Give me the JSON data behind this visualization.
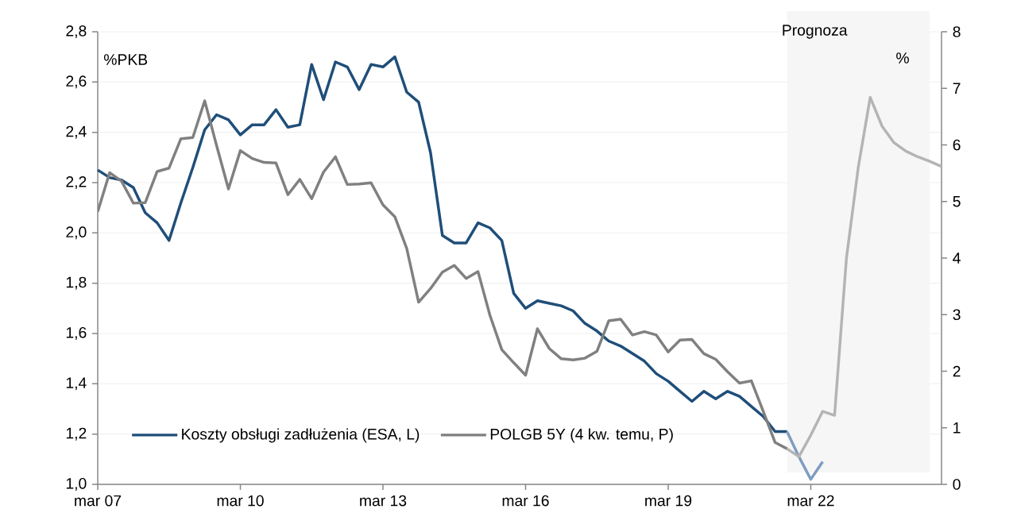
{
  "chart_data": {
    "type": "line",
    "ylabel": "%PKB",
    "y2label": "%",
    "xlim": [
      "2007-03",
      "2024-12"
    ],
    "xticks": [
      {
        "value": "2007-03",
        "label": "mar 07"
      },
      {
        "value": "2010-03",
        "label": "mar 10"
      },
      {
        "value": "2013-03",
        "label": "mar 13"
      },
      {
        "value": "2016-03",
        "label": "mar 16"
      },
      {
        "value": "2019-03",
        "label": "mar 19"
      },
      {
        "value": "2022-03",
        "label": "mar 22"
      }
    ],
    "ylim": [
      1.0,
      2.8
    ],
    "yticks": [
      {
        "value": 1.0,
        "label": "1,0"
      },
      {
        "value": 1.2,
        "label": "1,2"
      },
      {
        "value": 1.4,
        "label": "1,4"
      },
      {
        "value": 1.6,
        "label": "1,6"
      },
      {
        "value": 1.8,
        "label": "1,8"
      },
      {
        "value": 2.0,
        "label": "2,0"
      },
      {
        "value": 2.2,
        "label": "2,2"
      },
      {
        "value": 2.4,
        "label": "2,4"
      },
      {
        "value": 2.6,
        "label": "2,6"
      },
      {
        "value": 2.8,
        "label": "2,8"
      }
    ],
    "y2lim": [
      0,
      8
    ],
    "y2ticks": [
      0,
      1,
      2,
      3,
      4,
      5,
      6,
      7,
      8
    ],
    "grid": "y",
    "legend": "bottom left",
    "bands": [
      {
        "axis": "x",
        "from": "2021-09",
        "to": "2024-09",
        "label": "Prognoza",
        "color": "#f6f6f6"
      }
    ],
    "series": [
      {
        "name": "Koszty obsługi zadłużenia (ESA, L)",
        "color": "#1f4e79",
        "x": [
          "2007-03",
          "2007-06",
          "2007-09",
          "2007-12",
          "2008-03",
          "2008-06",
          "2008-09",
          "2008-12",
          "2009-03",
          "2009-06",
          "2009-09",
          "2009-12",
          "2010-03",
          "2010-06",
          "2010-09",
          "2010-12",
          "2011-03",
          "2011-06",
          "2011-09",
          "2011-12",
          "2012-03",
          "2012-06",
          "2012-09",
          "2012-12",
          "2013-03",
          "2013-06",
          "2013-09",
          "2013-12",
          "2014-03",
          "2014-06",
          "2014-09",
          "2014-12",
          "2015-03",
          "2015-06",
          "2015-09",
          "2015-12",
          "2016-03",
          "2016-06",
          "2016-09",
          "2016-12",
          "2017-03",
          "2017-06",
          "2017-09",
          "2017-12",
          "2018-03",
          "2018-06",
          "2018-09",
          "2018-12",
          "2019-03",
          "2019-06",
          "2019-09",
          "2019-12",
          "2020-03",
          "2020-06",
          "2020-09",
          "2020-12",
          "2021-03",
          "2021-06",
          "2021-09"
        ],
        "values": [
          2.25,
          2.22,
          2.21,
          2.18,
          2.08,
          2.04,
          1.97,
          2.12,
          2.26,
          2.41,
          2.47,
          2.45,
          2.39,
          2.43,
          2.43,
          2.49,
          2.42,
          2.43,
          2.67,
          2.53,
          2.68,
          2.66,
          2.57,
          2.67,
          2.66,
          2.7,
          2.56,
          2.52,
          2.32,
          1.99,
          1.96,
          1.96,
          2.04,
          2.02,
          1.97,
          1.76,
          1.7,
          1.73,
          1.72,
          1.71,
          1.69,
          1.64,
          1.61,
          1.57,
          1.55,
          1.52,
          1.49,
          1.44,
          1.41,
          1.37,
          1.33,
          1.37,
          1.34,
          1.37,
          1.35,
          1.31,
          1.27,
          1.21,
          1.21
        ]
      },
      {
        "name": "POLGB 5Y (4 kw. temu, P)",
        "color": "#808080",
        "axis": "y2",
        "x": [
          "2007-03",
          "2007-06",
          "2007-09",
          "2007-12",
          "2008-03",
          "2008-06",
          "2008-09",
          "2008-12",
          "2009-03",
          "2009-06",
          "2009-09",
          "2009-12",
          "2010-03",
          "2010-06",
          "2010-09",
          "2010-12",
          "2011-03",
          "2011-06",
          "2011-09",
          "2011-12",
          "2012-03",
          "2012-06",
          "2012-09",
          "2012-12",
          "2013-03",
          "2013-06",
          "2013-09",
          "2013-12",
          "2014-03",
          "2014-06",
          "2014-09",
          "2014-12",
          "2015-03",
          "2015-06",
          "2015-09",
          "2015-12",
          "2016-03",
          "2016-06",
          "2016-09",
          "2016-12",
          "2017-03",
          "2017-06",
          "2017-09",
          "2017-12",
          "2018-03",
          "2018-06",
          "2018-09",
          "2018-12",
          "2019-03",
          "2019-06",
          "2019-09",
          "2019-12",
          "2020-03",
          "2020-06",
          "2020-09",
          "2020-12",
          "2021-03",
          "2021-06",
          "2021-09"
        ],
        "values": [
          4.82,
          5.51,
          5.36,
          4.97,
          4.98,
          5.53,
          5.59,
          6.11,
          6.13,
          6.78,
          5.99,
          5.22,
          5.9,
          5.76,
          5.69,
          5.68,
          5.12,
          5.39,
          5.05,
          5.52,
          5.79,
          5.3,
          5.31,
          5.33,
          4.94,
          4.73,
          4.17,
          3.22,
          3.46,
          3.75,
          3.87,
          3.64,
          3.76,
          2.99,
          2.38,
          2.15,
          1.93,
          2.75,
          2.4,
          2.22,
          2.2,
          2.23,
          2.35,
          2.89,
          2.92,
          2.64,
          2.7,
          2.64,
          2.34,
          2.55,
          2.56,
          2.31,
          2.21,
          1.99,
          1.79,
          1.83,
          1.29,
          0.74,
          0.63
        ]
      },
      {
        "color": "#7f9cc0",
        "x": [
          "2021-09",
          "2021-12",
          "2022-03",
          "2022-06"
        ],
        "values": [
          1.21,
          1.11,
          1.02,
          1.09
        ]
      },
      {
        "color": "#b4b4b4",
        "axis": "y2",
        "x": [
          "2021-09",
          "2021-12",
          "2022-03",
          "2022-06",
          "2022-09",
          "2022-12",
          "2023-03",
          "2023-06",
          "2023-09",
          "2023-12",
          "2024-03",
          "2024-06",
          "2024-09",
          "2024-12"
        ],
        "values": [
          0.63,
          0.49,
          0.87,
          1.29,
          1.22,
          4.0,
          5.61,
          6.84,
          6.33,
          6.04,
          5.89,
          5.79,
          5.71,
          5.62
        ]
      }
    ]
  }
}
